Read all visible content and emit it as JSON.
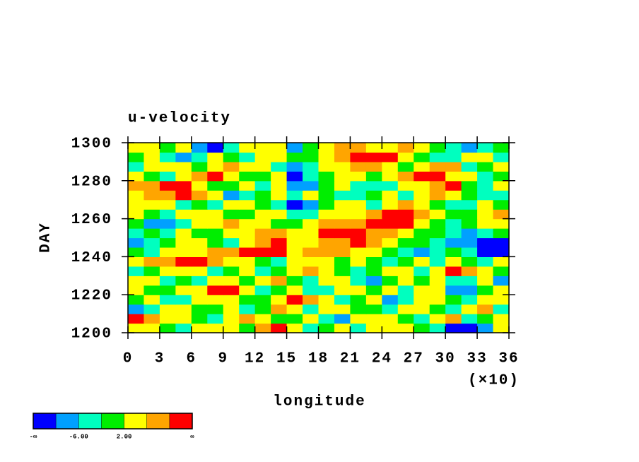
{
  "chart_data": {
    "type": "heatmap",
    "title": "u-velocity",
    "xlabel": "longitude",
    "ylabel": "DAY",
    "x_multiplier_label": "(×10)",
    "xlim": [
      0,
      360
    ],
    "ylim": [
      1200,
      1300
    ],
    "xticks": [
      {
        "value": 0,
        "label": "0"
      },
      {
        "value": 30,
        "label": "3"
      },
      {
        "value": 60,
        "label": "6"
      },
      {
        "value": 90,
        "label": "9"
      },
      {
        "value": 120,
        "label": "12"
      },
      {
        "value": 150,
        "label": "15"
      },
      {
        "value": 180,
        "label": "18"
      },
      {
        "value": 210,
        "label": "21"
      },
      {
        "value": 240,
        "label": "24"
      },
      {
        "value": 270,
        "label": "27"
      },
      {
        "value": 300,
        "label": "30"
      },
      {
        "value": 330,
        "label": "33"
      },
      {
        "value": 360,
        "label": "36"
      }
    ],
    "yticks": [
      1200,
      1220,
      1240,
      1260,
      1280,
      1300
    ],
    "x": [
      7.5,
      22.5,
      37.5,
      52.5,
      67.5,
      82.5,
      97.5,
      112.5,
      127.5,
      142.5,
      157.5,
      172.5,
      187.5,
      202.5,
      217.5,
      232.5,
      247.5,
      262.5,
      277.5,
      292.5,
      307.5,
      322.5,
      337.5,
      352.5
    ],
    "y": [
      1202.5,
      1207.5,
      1212.5,
      1217.5,
      1222.5,
      1227.5,
      1232.5,
      1237.5,
      1242.5,
      1247.5,
      1252.5,
      1257.5,
      1262.5,
      1267.5,
      1272.5,
      1277.5,
      1282.5,
      1287.5,
      1292.5,
      1297.5
    ],
    "z": [
      [
        3,
        4,
        0,
        -3,
        4,
        5,
        2,
        1,
        9,
        11,
        5,
        -4,
        0,
        3,
        -3,
        4,
        2,
        5,
        -2,
        -5,
        -11,
        -12,
        -8,
        3
      ],
      [
        11,
        8,
        4,
        2,
        0,
        -3,
        5,
        6,
        3,
        -2,
        0,
        4,
        -4,
        -7,
        2,
        5,
        3,
        0,
        -3,
        4,
        7,
        -4,
        0,
        5
      ],
      [
        -9,
        -4,
        5,
        3,
        -2,
        0,
        4,
        -5,
        0,
        6,
        3,
        -3,
        2,
        4,
        -2,
        0,
        -6,
        3,
        5,
        0,
        -3,
        2,
        6,
        -4
      ],
      [
        0,
        3,
        -3,
        -5,
        2,
        4,
        3,
        0,
        -2,
        5,
        11,
        8,
        2,
        -3,
        0,
        4,
        -8,
        -3,
        2,
        5,
        0,
        -3,
        4,
        2
      ],
      [
        4,
        -2,
        0,
        3,
        5,
        12,
        11,
        4,
        -3,
        0,
        2,
        -4,
        -6,
        3,
        5,
        0,
        2,
        -5,
        4,
        2,
        -9,
        -10,
        0,
        3
      ],
      [
        2,
        5,
        -4,
        0,
        -3,
        4,
        3,
        -2,
        5,
        7,
        0,
        -3,
        4,
        2,
        -4,
        -8,
        -2,
        3,
        0,
        5,
        -3,
        -5,
        3,
        -7
      ],
      [
        -3,
        0,
        4,
        5,
        2,
        -4,
        0,
        3,
        -5,
        0,
        4,
        6,
        3,
        -2,
        -5,
        0,
        4,
        2,
        -3,
        3,
        11,
        9,
        4,
        0
      ],
      [
        4,
        6,
        9,
        11,
        12,
        8,
        5,
        3,
        0,
        -3,
        2,
        4,
        5,
        0,
        3,
        -2,
        -6,
        0,
        3,
        -4,
        4,
        0,
        -3,
        5
      ],
      [
        0,
        -3,
        3,
        5,
        4,
        6,
        8,
        11,
        12,
        10,
        5,
        6,
        8,
        9,
        4,
        3,
        0,
        -4,
        -8,
        -3,
        0,
        -6,
        -11,
        -12
      ],
      [
        -10,
        -6,
        0,
        4,
        2,
        0,
        -3,
        4,
        9,
        12,
        5,
        3,
        6,
        8,
        11,
        9,
        5,
        0,
        -2,
        -5,
        -7,
        -10,
        -13,
        -12
      ],
      [
        -3,
        0,
        -4,
        2,
        0,
        -2,
        4,
        3,
        6,
        8,
        5,
        4,
        10,
        11,
        12,
        9,
        6,
        3,
        -2,
        0,
        -4,
        -7,
        -3,
        -2
      ],
      [
        0,
        -7,
        -9,
        -4,
        2,
        4,
        8,
        5,
        3,
        -2,
        0,
        4,
        6,
        8,
        9,
        11,
        12,
        10,
        5,
        0,
        -3,
        0,
        4,
        2
      ],
      [
        3,
        0,
        -3,
        2,
        5,
        4,
        0,
        -2,
        3,
        4,
        -3,
        -5,
        2,
        4,
        5,
        8,
        12,
        11,
        6,
        3,
        0,
        -2,
        4,
        6
      ],
      [
        5,
        3,
        2,
        -3,
        0,
        -4,
        2,
        4,
        0,
        -6,
        -11,
        -8,
        0,
        3,
        2,
        -3,
        4,
        6,
        3,
        0,
        -4,
        -3,
        2,
        0
      ],
      [
        4,
        8,
        6,
        12,
        9,
        3,
        -10,
        -6,
        0,
        4,
        -3,
        2,
        0,
        -3,
        -5,
        0,
        3,
        -4,
        5,
        9,
        4,
        0,
        -6,
        -3
      ],
      [
        6,
        9,
        11,
        10,
        5,
        0,
        -2,
        3,
        -4,
        2,
        -8,
        -9,
        0,
        3,
        -3,
        -6,
        -4,
        2,
        5,
        8,
        11,
        0,
        -3,
        3
      ],
      [
        3,
        0,
        -4,
        4,
        6,
        11,
        3,
        0,
        -2,
        4,
        -11,
        -6,
        0,
        2,
        3,
        -2,
        4,
        6,
        10,
        12,
        5,
        2,
        -4,
        0
      ],
      [
        -3,
        2,
        5,
        3,
        0,
        4,
        6,
        5,
        2,
        -3,
        -10,
        -4,
        3,
        5,
        8,
        6,
        3,
        0,
        4,
        9,
        6,
        -3,
        0,
        4
      ],
      [
        0,
        4,
        -3,
        -8,
        -4,
        3,
        0,
        -5,
        2,
        5,
        -2,
        0,
        3,
        8,
        11,
        12,
        10,
        4,
        0,
        -3,
        -6,
        2,
        5,
        -4
      ],
      [
        4,
        2,
        0,
        3,
        -9,
        -11,
        -4,
        2,
        5,
        3,
        -10,
        0,
        5,
        8,
        9,
        4,
        3,
        6,
        2,
        0,
        -5,
        -9,
        -3,
        0
      ]
    ],
    "colorbar": {
      "colors": [
        "#0000ff",
        "#00a0ff",
        "#00ffbf",
        "#00ee00",
        "#ffff00",
        "#ffa500",
        "#ff0000"
      ],
      "levels": [
        -10,
        -6,
        -2,
        2,
        6,
        10
      ],
      "ticks": [
        {
          "value": -6,
          "label": "-6.00"
        },
        {
          "value": 2,
          "label": "2.00"
        }
      ],
      "low_label": "-∞",
      "high_label": "∞"
    }
  }
}
